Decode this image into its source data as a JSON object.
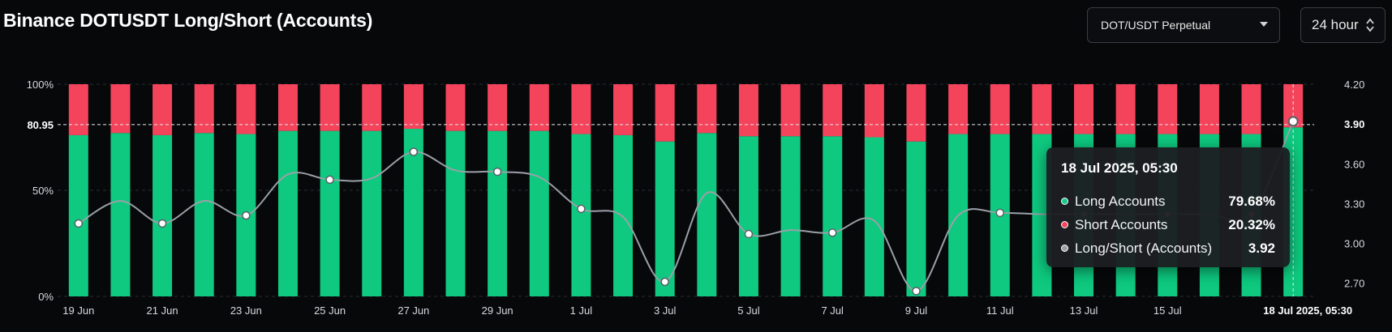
{
  "header": {
    "title": "Binance DOTUSDT Long/Short (Accounts)",
    "symbol_select": "DOT/USDT Perpetual",
    "range_select": "24 hour"
  },
  "tooltip": {
    "title": "18 Jul 2025, 05:30",
    "rows": [
      {
        "label": "Long Accounts",
        "value": "79.68%",
        "color": "#1ac98a"
      },
      {
        "label": "Short Accounts",
        "value": "20.32%",
        "color": "#f4455e"
      },
      {
        "label": "Long/Short (Accounts)",
        "value": "3.92",
        "color": "#9aa0a8"
      }
    ]
  },
  "colors": {
    "long": "#0ec97f",
    "short": "#f4445c",
    "line": "#9aa0a8",
    "background": "#07080a"
  },
  "chart_data": {
    "type": "bar",
    "stacked": true,
    "x": [
      "19 Jun",
      "20 Jun",
      "21 Jun",
      "22 Jun",
      "23 Jun",
      "24 Jun",
      "25 Jun",
      "26 Jun",
      "27 Jun",
      "28 Jun",
      "29 Jun",
      "30 Jun",
      "1 Jul",
      "2 Jul",
      "3 Jul",
      "4 Jul",
      "5 Jul",
      "6 Jul",
      "7 Jul",
      "8 Jul",
      "9 Jul",
      "10 Jul",
      "11 Jul",
      "12 Jul",
      "13 Jul",
      "14 Jul",
      "15 Jul",
      "16 Jul",
      "17 Jul",
      "18 Jul"
    ],
    "x_tick_labels": [
      "19 Jun",
      "21 Jun",
      "23 Jun",
      "25 Jun",
      "27 Jun",
      "29 Jun",
      "1 Jul",
      "3 Jul",
      "5 Jul",
      "7 Jul",
      "9 Jul",
      "11 Jul",
      "13 Jul",
      "15 Jul"
    ],
    "hover_label": "18 Jul 2025, 05:30",
    "series": [
      {
        "name": "Long Accounts",
        "axis": "left",
        "values": [
          76,
          77,
          76,
          77,
          76.5,
          78,
          78,
          78,
          79,
          78,
          78,
          78,
          76.5,
          76,
          73,
          77,
          75.5,
          75.5,
          75.5,
          75,
          73,
          76.5,
          76.5,
          76.5,
          76.5,
          76.5,
          76.5,
          76.5,
          76.5,
          79.68
        ]
      },
      {
        "name": "Short Accounts",
        "axis": "left",
        "values": [
          24,
          23,
          24,
          23,
          23.5,
          22,
          22,
          22,
          21,
          22,
          22,
          22,
          23.5,
          24,
          27,
          23,
          24.5,
          24.5,
          24.5,
          25,
          27,
          23.5,
          23.5,
          23.5,
          23.5,
          23.5,
          23.5,
          23.5,
          23.5,
          20.32
        ]
      },
      {
        "name": "Long/Short (Accounts)",
        "type": "line",
        "axis": "right",
        "values": [
          3.15,
          3.32,
          3.15,
          3.32,
          3.21,
          3.52,
          3.48,
          3.49,
          3.69,
          3.55,
          3.54,
          3.5,
          3.26,
          3.2,
          2.71,
          3.38,
          3.07,
          3.1,
          3.08,
          3.17,
          2.64,
          3.21,
          3.23,
          3.22,
          3.22,
          3.22,
          3.22,
          3.22,
          3.22,
          3.92
        ]
      }
    ],
    "y_left": {
      "ticks": [
        "0%",
        "50%",
        "80.95",
        "100%"
      ],
      "range": [
        0,
        100
      ],
      "reference_value": 80.95,
      "reference_label": "80.95"
    },
    "y_right": {
      "ticks": [
        "2.70",
        "3.00",
        "3.30",
        "3.60",
        "3.90",
        "4.20"
      ],
      "range": [
        2.6,
        4.2
      ],
      "reference_value": 3.9,
      "reference_label": "3.90"
    },
    "legend": "none",
    "grid": "dashed horizontal"
  }
}
